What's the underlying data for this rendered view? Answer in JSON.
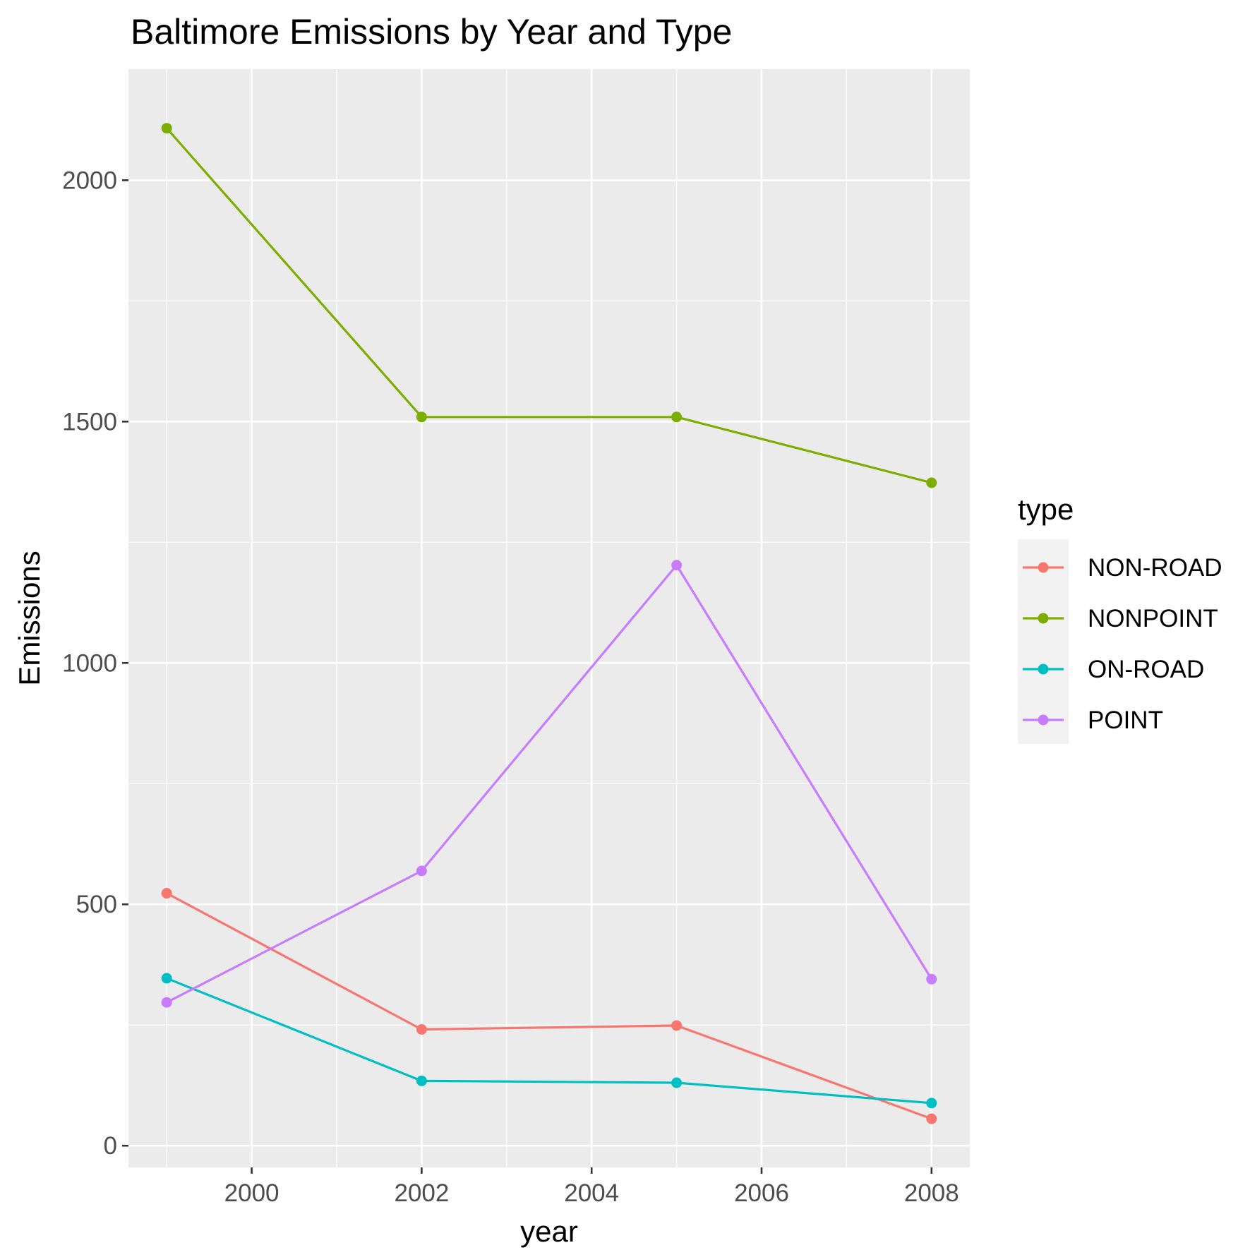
{
  "chart_data": {
    "type": "line",
    "title": "Baltimore Emissions by Year and Type",
    "xlabel": "year",
    "ylabel": "Emissions",
    "x": [
      1999,
      2002,
      2005,
      2008
    ],
    "series": [
      {
        "name": "NON-ROAD",
        "values": [
          522.94,
          240.85,
          248.93,
          55.82
        ]
      },
      {
        "name": "NONPOINT",
        "values": [
          2107.63,
          1509.5,
          1509.5,
          1373.21
        ]
      },
      {
        "name": "ON-ROAD",
        "values": [
          346.82,
          134.31,
          130.43,
          88.28
        ]
      },
      {
        "name": "POINT",
        "values": [
          296.8,
          569.26,
          1202.49,
          344.98
        ]
      }
    ],
    "xlim": [
      1998.55,
      2008.45
    ],
    "ylim": [
      -45,
      2230
    ],
    "x_ticks": [
      "2000",
      "2002",
      "2004",
      "2006",
      "2008"
    ],
    "y_ticks": [
      "0",
      "500",
      "1000",
      "1500",
      "2000"
    ],
    "grid": true,
    "legend": {
      "title": "type",
      "position": "right"
    },
    "colors": {
      "NON-ROAD": "#F8766D",
      "NONPOINT": "#7CAE00",
      "ON-ROAD": "#00BFC4",
      "POINT": "#C77CFF",
      "panel_background": "#EBEBEB",
      "grid": "#FFFFFF"
    }
  }
}
